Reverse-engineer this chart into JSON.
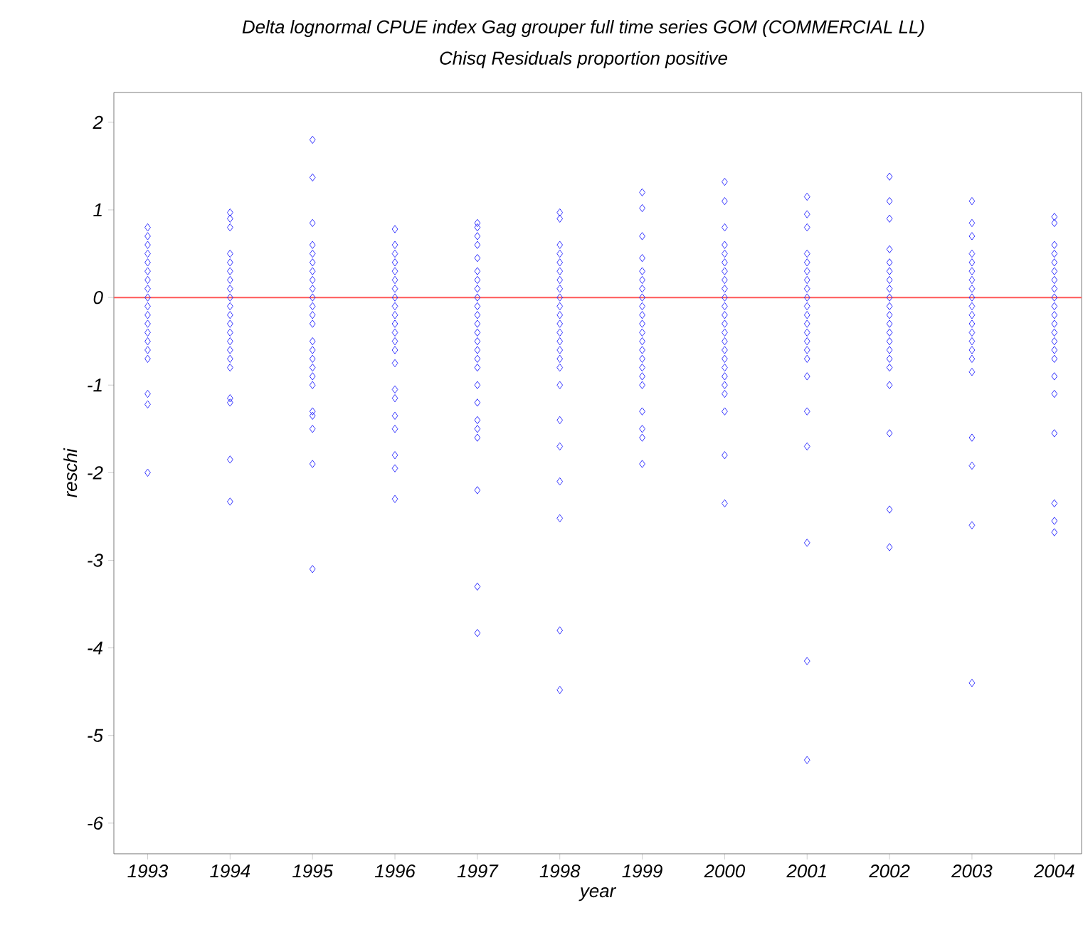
{
  "chart_data": {
    "type": "scatter",
    "title": "Delta lognormal CPUE index Gag grouper full time series GOM (COMMERCIAL LL)",
    "subtitle": "Chisq Residuals proportion positive",
    "xlabel": "year",
    "ylabel": "reschi",
    "xlim": [
      1992.59,
      2004.33
    ],
    "ylim": [
      -6.35,
      2.34
    ],
    "xticks": [
      1993,
      1994,
      1995,
      1996,
      1997,
      1998,
      1999,
      2000,
      2001,
      2002,
      2003,
      2004
    ],
    "yticks": [
      -6,
      -5,
      -4,
      -3,
      -2,
      -1,
      0,
      1,
      2
    ],
    "marker": "diamond",
    "grid": false,
    "ref_lines": [
      {
        "axis": "y",
        "value": 0,
        "color": "#ff6666"
      }
    ],
    "series": [
      {
        "color": "#3333ff",
        "x": [
          1993,
          1993,
          1993,
          1993,
          1993,
          1993,
          1993,
          1993,
          1993,
          1993,
          1993,
          1993,
          1993,
          1993,
          1993,
          1993,
          1993,
          1993,
          1993
        ],
        "values": [
          0.8,
          0.7,
          0.6,
          0.5,
          0.4,
          0.3,
          0.2,
          0.1,
          0,
          -0.1,
          -0.2,
          -0.3,
          -0.4,
          -0.5,
          -0.6,
          -0.7,
          -1.1,
          -1.22,
          -2.0
        ]
      },
      {
        "color": "#3333ff",
        "x": [
          1994,
          1994,
          1994,
          1994,
          1994,
          1994,
          1994,
          1994,
          1994,
          1994,
          1994,
          1994,
          1994,
          1994,
          1994,
          1994,
          1994,
          1994,
          1994,
          1994,
          1994
        ],
        "values": [
          0.97,
          0.9,
          0.8,
          0.5,
          0.4,
          0.3,
          0.2,
          0.1,
          0,
          -0.1,
          -0.2,
          -0.3,
          -0.4,
          -0.5,
          -0.6,
          -0.7,
          -0.8,
          -1.15,
          -1.2,
          -1.85,
          -2.33
        ]
      },
      {
        "color": "#3333ff",
        "x": [
          1995,
          1995,
          1995,
          1995,
          1995,
          1995,
          1995,
          1995,
          1995,
          1995,
          1995,
          1995,
          1995,
          1995,
          1995,
          1995,
          1995,
          1995,
          1995,
          1995,
          1995,
          1995,
          1995,
          1995
        ],
        "values": [
          1.8,
          1.37,
          0.85,
          0.6,
          0.5,
          0.4,
          0.3,
          0.2,
          0.1,
          0,
          -0.1,
          -0.2,
          -0.3,
          -0.5,
          -0.6,
          -0.7,
          -0.8,
          -0.9,
          -1.0,
          -1.3,
          -1.35,
          -1.5,
          -1.9,
          -3.1
        ]
      },
      {
        "color": "#3333ff",
        "x": [
          1996,
          1996,
          1996,
          1996,
          1996,
          1996,
          1996,
          1996,
          1996,
          1996,
          1996,
          1996,
          1996,
          1996,
          1996,
          1996,
          1996,
          1996,
          1996,
          1996,
          1996,
          1996
        ],
        "values": [
          0.78,
          0.6,
          0.5,
          0.4,
          0.3,
          0.2,
          0.1,
          0,
          -0.1,
          -0.2,
          -0.3,
          -0.4,
          -0.5,
          -0.6,
          -0.75,
          -1.05,
          -1.15,
          -1.35,
          -1.5,
          -1.8,
          -1.95,
          -2.3
        ]
      },
      {
        "color": "#3333ff",
        "x": [
          1997,
          1997,
          1997,
          1997,
          1997,
          1997,
          1997,
          1997,
          1997,
          1997,
          1997,
          1997,
          1997,
          1997,
          1997,
          1997,
          1997,
          1997,
          1997,
          1997,
          1997,
          1997,
          1997,
          1997,
          1997
        ],
        "values": [
          0.85,
          0.8,
          0.7,
          0.6,
          0.45,
          0.3,
          0.2,
          0.1,
          0,
          -0.1,
          -0.2,
          -0.3,
          -0.4,
          -0.5,
          -0.6,
          -0.7,
          -0.8,
          -1.0,
          -1.2,
          -1.4,
          -1.5,
          -1.6,
          -2.2,
          -3.3,
          -3.83
        ]
      },
      {
        "color": "#3333ff",
        "x": [
          1998,
          1998,
          1998,
          1998,
          1998,
          1998,
          1998,
          1998,
          1998,
          1998,
          1998,
          1998,
          1998,
          1998,
          1998,
          1998,
          1998,
          1998,
          1998,
          1998,
          1998,
          1998,
          1998,
          1998
        ],
        "values": [
          0.97,
          0.9,
          0.6,
          0.5,
          0.4,
          0.3,
          0.2,
          0.1,
          0,
          -0.1,
          -0.2,
          -0.3,
          -0.4,
          -0.5,
          -0.6,
          -0.7,
          -0.8,
          -1.0,
          -1.4,
          -1.7,
          -2.1,
          -2.52,
          -3.8,
          -4.48
        ]
      },
      {
        "color": "#3333ff",
        "x": [
          1999,
          1999,
          1999,
          1999,
          1999,
          1999,
          1999,
          1999,
          1999,
          1999,
          1999,
          1999,
          1999,
          1999,
          1999,
          1999,
          1999,
          1999,
          1999,
          1999,
          1999,
          1999
        ],
        "values": [
          1.2,
          1.02,
          0.7,
          0.45,
          0.3,
          0.2,
          0.1,
          0,
          -0.1,
          -0.2,
          -0.3,
          -0.4,
          -0.5,
          -0.6,
          -0.7,
          -0.8,
          -0.9,
          -1.0,
          -1.3,
          -1.5,
          -1.6,
          -1.9
        ]
      },
      {
        "color": "#3333ff",
        "x": [
          2000,
          2000,
          2000,
          2000,
          2000,
          2000,
          2000,
          2000,
          2000,
          2000,
          2000,
          2000,
          2000,
          2000,
          2000,
          2000,
          2000,
          2000,
          2000,
          2000,
          2000,
          2000,
          2000,
          2000
        ],
        "values": [
          1.32,
          1.1,
          0.8,
          0.6,
          0.5,
          0.4,
          0.3,
          0.2,
          0.1,
          0,
          -0.1,
          -0.2,
          -0.3,
          -0.4,
          -0.5,
          -0.6,
          -0.7,
          -0.8,
          -0.9,
          -1.0,
          -1.1,
          -1.3,
          -1.8,
          -2.35
        ]
      },
      {
        "color": "#3333ff",
        "x": [
          2001,
          2001,
          2001,
          2001,
          2001,
          2001,
          2001,
          2001,
          2001,
          2001,
          2001,
          2001,
          2001,
          2001,
          2001,
          2001,
          2001,
          2001,
          2001,
          2001,
          2001,
          2001
        ],
        "values": [
          1.15,
          0.95,
          0.8,
          0.5,
          0.4,
          0.3,
          0.2,
          0.1,
          0,
          -0.1,
          -0.2,
          -0.3,
          -0.4,
          -0.5,
          -0.6,
          -0.7,
          -0.9,
          -1.3,
          -1.7,
          -2.8,
          -4.15,
          -5.28
        ]
      },
      {
        "color": "#3333ff",
        "x": [
          2002,
          2002,
          2002,
          2002,
          2002,
          2002,
          2002,
          2002,
          2002,
          2002,
          2002,
          2002,
          2002,
          2002,
          2002,
          2002,
          2002,
          2002,
          2002,
          2002,
          2002
        ],
        "values": [
          1.38,
          1.1,
          0.9,
          0.55,
          0.4,
          0.3,
          0.2,
          0.1,
          0,
          -0.1,
          -0.2,
          -0.3,
          -0.4,
          -0.5,
          -0.6,
          -0.7,
          -0.8,
          -1.0,
          -1.55,
          -2.42,
          -2.85
        ]
      },
      {
        "color": "#3333ff",
        "x": [
          2003,
          2003,
          2003,
          2003,
          2003,
          2003,
          2003,
          2003,
          2003,
          2003,
          2003,
          2003,
          2003,
          2003,
          2003,
          2003,
          2003,
          2003,
          2003,
          2003,
          2003
        ],
        "values": [
          1.1,
          0.85,
          0.7,
          0.5,
          0.4,
          0.3,
          0.2,
          0.1,
          0,
          -0.1,
          -0.2,
          -0.3,
          -0.4,
          -0.5,
          -0.6,
          -0.7,
          -0.85,
          -1.6,
          -1.92,
          -2.6,
          -4.4
        ]
      },
      {
        "color": "#3333ff",
        "x": [
          2004,
          2004,
          2004,
          2004,
          2004,
          2004,
          2004,
          2004,
          2004,
          2004,
          2004,
          2004,
          2004,
          2004,
          2004,
          2004,
          2004,
          2004,
          2004,
          2004,
          2004,
          2004
        ],
        "values": [
          0.92,
          0.85,
          0.6,
          0.5,
          0.4,
          0.3,
          0.2,
          0.1,
          0,
          -0.1,
          -0.2,
          -0.3,
          -0.4,
          -0.5,
          -0.6,
          -0.7,
          -0.9,
          -1.1,
          -1.55,
          -2.35,
          -2.55,
          -2.68
        ]
      }
    ]
  }
}
